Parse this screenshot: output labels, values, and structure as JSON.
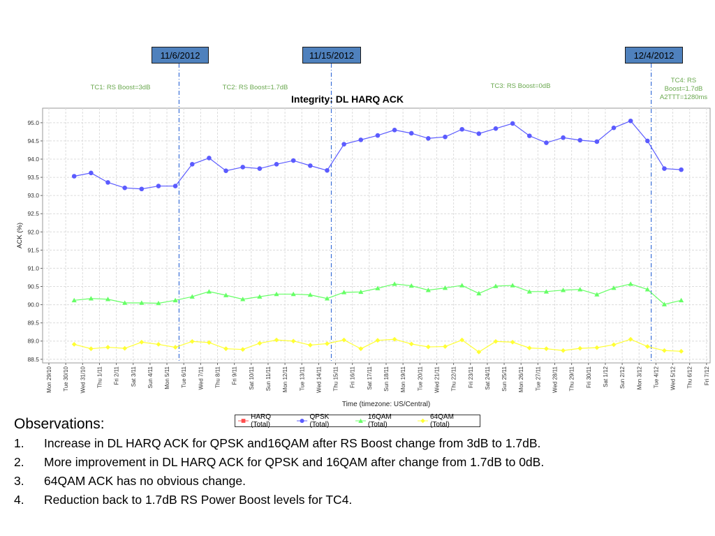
{
  "chart_data": {
    "type": "line",
    "title": "Integrity: DL HARQ ACK",
    "xlabel": "Time (timezone: US/Central)",
    "ylabel": "ACK (%)",
    "ylim": [
      88.4,
      95.4
    ],
    "yticks": [
      "88.5",
      "89.0",
      "89.5",
      "90.0",
      "90.5",
      "91.0",
      "91.5",
      "92.0",
      "92.5",
      "93.0",
      "93.5",
      "94.0",
      "94.5",
      "95.0"
    ],
    "categories": [
      "Mon 29/10",
      "Tue 30/10",
      "Wed 31/10",
      "Thu 1/11",
      "Fri 2/11",
      "Sat 3/11",
      "Sun 4/11",
      "Mon 5/11",
      "Tue 6/11",
      "Wed 7/11",
      "Thu 8/11",
      "Fri 9/11",
      "Sat 10/11",
      "Sun 11/11",
      "Mon 12/11",
      "Tue 13/11",
      "Wed 14/11",
      "Thu 15/11",
      "Fri 16/11",
      "Sat 17/11",
      "Sun 18/11",
      "Mon 19/11",
      "Tue 20/11",
      "Wed 21/11",
      "Thu 22/11",
      "Fri 23/11",
      "Sat 24/11",
      "Sun 25/11",
      "Mon 26/11",
      "Tue 27/11",
      "Wed 28/11",
      "Thu 29/11",
      "Fri 30/11",
      "Sat 1/12",
      "Sun 2/12",
      "Mon 3/12",
      "Tue 4/12",
      "Wed 5/12",
      "Thu 6/12",
      "Fri 7/12"
    ],
    "grid": true,
    "legend_position": "bottom",
    "series": [
      {
        "name": "HARQ (Total)",
        "marker": "square",
        "color": "#ff4d4d",
        "x": [],
        "values": []
      },
      {
        "name": "QPSK (Total)",
        "marker": "circle",
        "color": "#5b5bff",
        "x": [
          1.5,
          2.5,
          3.5,
          4.5,
          5.5,
          6.5,
          7.5,
          8.5,
          9.5,
          10.5,
          11.5,
          12.5,
          13.5,
          14.5,
          15.5,
          16.5,
          17.5,
          18.5,
          19.5,
          20.5,
          21.5,
          22.5,
          23.5,
          24.5,
          25.5,
          26.5,
          27.5,
          28.5,
          29.5,
          30.5,
          31.5,
          32.5,
          33.5,
          34.5,
          35.5,
          36.5,
          37.5
        ],
        "values": [
          93.53,
          93.62,
          93.36,
          93.21,
          93.18,
          93.26,
          93.26,
          93.86,
          94.03,
          93.68,
          93.78,
          93.74,
          93.86,
          93.96,
          93.82,
          93.69,
          94.41,
          94.53,
          94.65,
          94.8,
          94.71,
          94.57,
          94.61,
          94.82,
          94.7,
          94.84,
          94.98,
          94.64,
          94.45,
          94.59,
          94.52,
          94.48,
          94.86,
          95.05,
          94.5,
          93.74,
          93.71
        ]
      },
      {
        "name": "16QAM (Total)",
        "marker": "triangle",
        "color": "#66ff66",
        "x": [
          1.5,
          2.5,
          3.5,
          4.5,
          5.5,
          6.5,
          7.5,
          8.5,
          9.5,
          10.5,
          11.5,
          12.5,
          13.5,
          14.5,
          15.5,
          16.5,
          17.5,
          18.5,
          19.5,
          20.5,
          21.5,
          22.5,
          23.5,
          24.5,
          25.5,
          26.5,
          27.5,
          28.5,
          29.5,
          30.5,
          31.5,
          32.5,
          33.5,
          34.5,
          35.5,
          36.5,
          37.5
        ],
        "values": [
          90.12,
          90.17,
          90.15,
          90.05,
          90.05,
          90.04,
          90.12,
          90.22,
          90.36,
          90.26,
          90.15,
          90.22,
          90.29,
          90.29,
          90.27,
          90.17,
          90.34,
          90.35,
          90.45,
          90.57,
          90.52,
          90.4,
          90.46,
          90.53,
          90.31,
          90.51,
          90.53,
          90.36,
          90.36,
          90.4,
          90.42,
          90.28,
          90.46,
          90.57,
          90.42,
          90.01,
          90.12
        ]
      },
      {
        "name": "64QAM (Total)",
        "marker": "diamond",
        "color": "#ffff33",
        "x": [
          1.5,
          2.5,
          3.5,
          4.5,
          5.5,
          6.5,
          7.5,
          8.5,
          9.5,
          10.5,
          11.5,
          12.5,
          13.5,
          14.5,
          15.5,
          16.5,
          17.5,
          18.5,
          19.5,
          20.5,
          21.5,
          22.5,
          23.5,
          24.5,
          25.5,
          26.5,
          27.5,
          28.5,
          29.5,
          30.5,
          31.5,
          32.5,
          33.5,
          34.5,
          35.5,
          36.5,
          37.5
        ],
        "values": [
          88.91,
          88.79,
          88.83,
          88.8,
          88.97,
          88.91,
          88.83,
          88.99,
          88.96,
          88.79,
          88.77,
          88.94,
          89.03,
          89.0,
          88.89,
          88.93,
          89.03,
          88.79,
          89.02,
          89.05,
          88.92,
          88.84,
          88.85,
          89.03,
          88.7,
          88.99,
          88.97,
          88.81,
          88.79,
          88.74,
          88.8,
          88.82,
          88.9,
          89.05,
          88.85,
          88.74,
          88.72
        ]
      }
    ],
    "markers": [
      {
        "label": "11/6/2012",
        "x": 7.72
      },
      {
        "label": "11/15/2012",
        "x": 16.75
      },
      {
        "label": "12/4/2012",
        "x": 35.72
      }
    ],
    "annotations": [
      {
        "text": "TC1: RS Boost=3dB"
      },
      {
        "text": "TC2: RS Boost=1.7dB"
      },
      {
        "text": "TC3: RS Boost=0dB"
      },
      {
        "text": "TC4: RS Boost=1.7dB A2TTT=1280ms"
      }
    ]
  },
  "tc_labels": {
    "tc1": "TC1: RS Boost=3dB",
    "tc2": "TC2: RS Boost=1.7dB",
    "tc3": "TC3: RS Boost=0dB",
    "tc4_l1": "TC4: RS",
    "tc4_l2": "Boost=1.7dB",
    "tc4_l3": "A2TTT=1280ms"
  },
  "legend": {
    "harq": "HARQ (Total)",
    "qpsk": "QPSK (Total)",
    "qam16": "16QAM (Total)",
    "qam64": "64QAM (Total)"
  },
  "observations": {
    "title": "Observations:",
    "items": [
      {
        "num": "1.",
        "text": "Increase in DL HARQ ACK for QPSK and16QAM after RS Boost change from 3dB to 1.7dB."
      },
      {
        "num": "2.",
        "text": "More improvement in DL HARQ ACK for QPSK and 16QAM after change from 1.7dB to 0dB."
      },
      {
        "num": "3.",
        "text": "64QAM ACK has no obvious change."
      },
      {
        "num": "4.",
        "text": "Reduction back to 1.7dB RS Power Boost levels for TC4."
      }
    ]
  }
}
